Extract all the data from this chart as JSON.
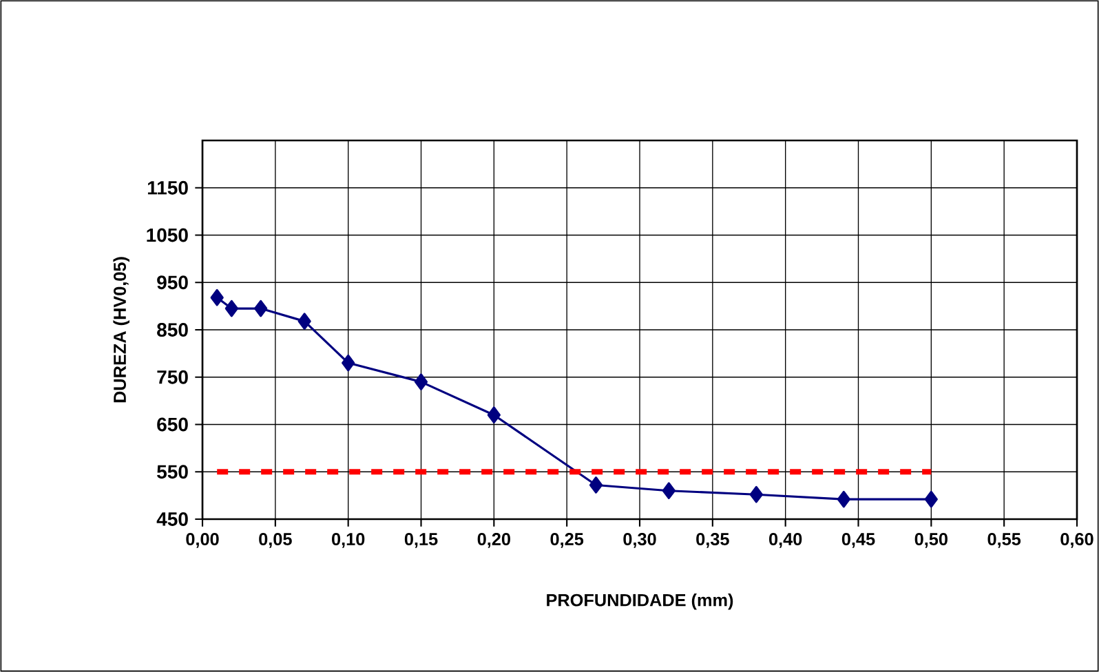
{
  "chart_data": {
    "type": "line",
    "xlabel": "PROFUNDIDADE (mm)",
    "ylabel": "DUREZA (HV0,05)",
    "xlim": [
      0,
      0.6
    ],
    "xticks": [
      {
        "value": 0,
        "label": "0,00"
      },
      {
        "value": 0.05,
        "label": "0,05"
      },
      {
        "value": 0.1,
        "label": "0,10"
      },
      {
        "value": 0.15,
        "label": "0,15"
      },
      {
        "value": 0.2,
        "label": "0,20"
      },
      {
        "value": 0.25,
        "label": "0,25"
      },
      {
        "value": 0.3,
        "label": "0,30"
      },
      {
        "value": 0.35,
        "label": "0,35"
      },
      {
        "value": 0.4,
        "label": "0,40"
      },
      {
        "value": 0.45,
        "label": "0,45"
      },
      {
        "value": 0.5,
        "label": "0,50"
      },
      {
        "value": 0.55,
        "label": "0,55"
      },
      {
        "value": 0.6,
        "label": "0,60"
      }
    ],
    "ylim": [
      450,
      1250
    ],
    "yticks": [
      450,
      550,
      650,
      750,
      850,
      950,
      1050,
      1150
    ],
    "grid": true,
    "series": [
      {
        "color": "#000080",
        "marker": "diamond",
        "line_style": "solid",
        "x": [
          0.01,
          0.02,
          0.04,
          0.07,
          0.1,
          0.15,
          0.2,
          0.27,
          0.32,
          0.38,
          0.44,
          0.5
        ],
        "values": [
          918,
          895,
          895,
          868,
          780,
          740,
          670,
          522,
          510,
          502,
          492,
          492
        ]
      },
      {
        "color": "#ff0000",
        "marker": "none",
        "line_style": "dashed",
        "x": [
          0.01,
          0.5
        ],
        "values": [
          550,
          550
        ]
      }
    ]
  }
}
